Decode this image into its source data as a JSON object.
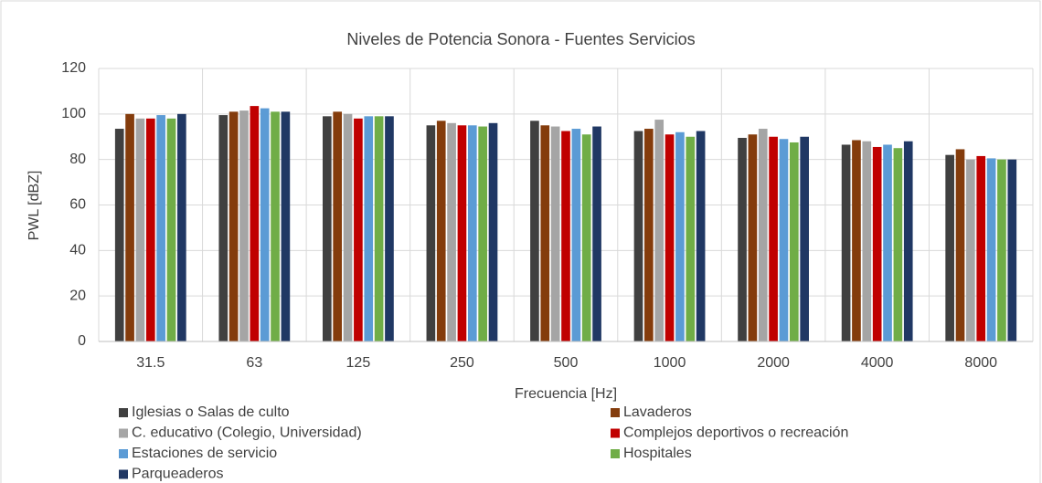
{
  "chart_data": {
    "type": "bar",
    "title": "Niveles de Potencia Sonora - Fuentes Servicios",
    "x_label": "Frecuencia [Hz]",
    "y_label": "PWL [dBZ]",
    "categories": [
      "31.5",
      "63",
      "125",
      "250",
      "500",
      "1000",
      "2000",
      "4000",
      "8000"
    ],
    "series": [
      {
        "name": "Iglesias o Salas de culto",
        "color": "#404040",
        "values": [
          93.5,
          99.5,
          99,
          95,
          97,
          92.5,
          89.5,
          86.5,
          82
        ]
      },
      {
        "name": "Lavaderos",
        "color": "#843c0c",
        "values": [
          100,
          101,
          101,
          97,
          95,
          93.5,
          91,
          88.5,
          84.5
        ]
      },
      {
        "name": "C. educativo (Colegio, Universidad)",
        "color": "#a5a5a5",
        "values": [
          98,
          101.5,
          100,
          96,
          94.5,
          97.5,
          93.5,
          88,
          80
        ]
      },
      {
        "name": "Complejos deportivos o recreación",
        "color": "#c00000",
        "values": [
          98,
          103.5,
          98,
          95,
          92.5,
          91,
          90,
          85.5,
          81.5
        ]
      },
      {
        "name": "Estaciones de servicio",
        "color": "#5b9bd5",
        "values": [
          99.5,
          102.5,
          99,
          95,
          93.5,
          92,
          89,
          86.5,
          80.5
        ]
      },
      {
        "name": "Hospitales",
        "color": "#70ad47",
        "values": [
          98,
          101,
          99,
          94.5,
          91,
          90,
          87.5,
          85,
          80
        ]
      },
      {
        "name": "Parqueaderos",
        "color": "#203864",
        "values": [
          100,
          101,
          99,
          96,
          94.5,
          92.5,
          90,
          88,
          80
        ]
      }
    ],
    "ylim": [
      0,
      120
    ],
    "yticks": [
      0,
      20,
      40,
      60,
      80,
      100,
      120
    ],
    "grid": true
  }
}
